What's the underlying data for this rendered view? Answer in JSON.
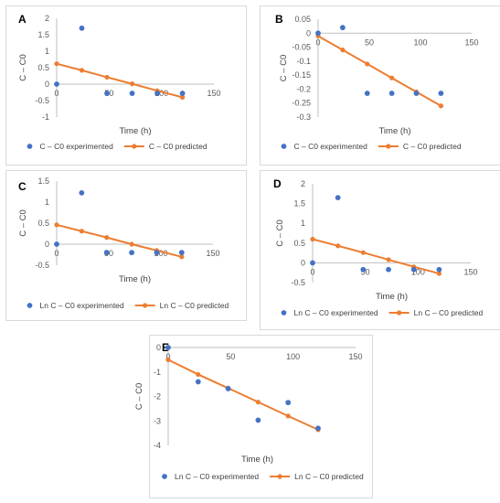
{
  "colors": {
    "experimented": "#4472c4",
    "predicted": "#ed7d31"
  },
  "chart_data": [
    {
      "type": "scatter",
      "panel": "A",
      "xlabel": "Time (h)",
      "ylabel": "C – C0",
      "xlim": [
        0,
        150
      ],
      "ylim": [
        -1,
        2
      ],
      "xticks": [
        0,
        50,
        100,
        150
      ],
      "yticks": [
        -1,
        -0.5,
        0,
        0.5,
        1,
        1.5,
        2
      ],
      "ytick_labels": [
        "-1",
        "-0.5",
        "0",
        "0.5",
        "1",
        "1.5",
        "2"
      ],
      "legend_position": "bottom",
      "series": [
        {
          "name": "C – C0 experimented",
          "kind": "scatter",
          "x": [
            0,
            24,
            48,
            72,
            96,
            120
          ],
          "y": [
            0,
            1.7,
            -0.28,
            -0.28,
            -0.28,
            -0.28
          ]
        },
        {
          "name": "C – C0 predicted",
          "kind": "line",
          "x": [
            0,
            24,
            48,
            72,
            96,
            120
          ],
          "y": [
            0.62,
            0.42,
            0.21,
            0.01,
            -0.2,
            -0.4
          ]
        }
      ]
    },
    {
      "type": "scatter",
      "panel": "B",
      "xlabel": "Time (h)",
      "ylabel": "C – C0",
      "xlim": [
        0,
        150
      ],
      "ylim": [
        -0.3,
        0.05
      ],
      "xticks": [
        0,
        50,
        100,
        150
      ],
      "yticks": [
        -0.3,
        -0.25,
        -0.2,
        -0.15,
        -0.1,
        -0.05,
        0,
        0.05
      ],
      "ytick_labels": [
        "-0.3",
        "-0.25",
        "-0.2",
        "-0.15",
        "-0.1",
        "-0.05",
        "0",
        "0.05"
      ],
      "legend_position": "bottom",
      "series": [
        {
          "name": "C – C0 experimented",
          "kind": "scatter",
          "x": [
            0,
            24,
            48,
            72,
            96,
            120
          ],
          "y": [
            0,
            0.02,
            -0.215,
            -0.215,
            -0.215,
            -0.215
          ]
        },
        {
          "name": "C – C0 predicted",
          "kind": "line",
          "x": [
            0,
            24,
            48,
            72,
            96,
            120
          ],
          "y": [
            -0.01,
            -0.06,
            -0.11,
            -0.16,
            -0.21,
            -0.26
          ]
        }
      ]
    },
    {
      "type": "scatter",
      "panel": "C",
      "xlabel": "Time (h)",
      "ylabel": "C – C0",
      "xlim": [
        0,
        150
      ],
      "ylim": [
        -0.5,
        1.5
      ],
      "xticks": [
        0,
        50,
        100,
        150
      ],
      "yticks": [
        -0.5,
        0,
        0.5,
        1,
        1.5
      ],
      "ytick_labels": [
        "-0.5",
        "0",
        "0.5",
        "1",
        "1.5"
      ],
      "legend_position": "bottom",
      "series": [
        {
          "name": "Ln C – C0 experimented",
          "kind": "scatter",
          "x": [
            0,
            24,
            48,
            72,
            96,
            120
          ],
          "y": [
            0,
            1.22,
            -0.2,
            -0.2,
            -0.2,
            -0.2
          ]
        },
        {
          "name": "Ln C – C0 predicted",
          "kind": "line",
          "x": [
            0,
            24,
            48,
            72,
            96,
            120
          ],
          "y": [
            0.46,
            0.31,
            0.16,
            0.0,
            -0.15,
            -0.3
          ]
        }
      ]
    },
    {
      "type": "scatter",
      "panel": "D",
      "xlabel": "Time (h)",
      "ylabel": "C – C0",
      "xlim": [
        0,
        150
      ],
      "ylim": [
        -0.5,
        2
      ],
      "xticks": [
        0,
        50,
        100,
        150
      ],
      "yticks": [
        -0.5,
        0,
        0.5,
        1,
        1.5,
        2
      ],
      "ytick_labels": [
        "-0.5",
        "0",
        "0.5",
        "1",
        "1.5",
        "2"
      ],
      "legend_position": "bottom",
      "series": [
        {
          "name": "Ln C – C0 experimented",
          "kind": "scatter",
          "x": [
            0,
            24,
            48,
            72,
            96,
            120
          ],
          "y": [
            0,
            1.65,
            -0.17,
            -0.17,
            -0.17,
            -0.17
          ]
        },
        {
          "name": "Ln C – C0 predicted",
          "kind": "line",
          "x": [
            0,
            24,
            48,
            72,
            96,
            120
          ],
          "y": [
            0.6,
            0.43,
            0.26,
            0.08,
            -0.1,
            -0.27
          ]
        }
      ]
    },
    {
      "type": "scatter",
      "panel": "E",
      "xlabel": "Time (h)",
      "ylabel": "C – C0",
      "xlim": [
        0,
        150
      ],
      "ylim": [
        -4,
        0
      ],
      "xticks": [
        0,
        50,
        100,
        150
      ],
      "yticks": [
        -4,
        -3,
        -2,
        -1,
        0
      ],
      "ytick_labels": [
        "-4",
        "-3",
        "-2",
        "-1",
        "0"
      ],
      "legend_position": "bottom",
      "series": [
        {
          "name": "Ln C – C0 experimented",
          "kind": "scatter",
          "x": [
            0,
            24,
            48,
            72,
            96,
            120
          ],
          "y": [
            0,
            -1.4,
            -1.68,
            -2.97,
            -2.25,
            -3.3
          ]
        },
        {
          "name": "Ln C – C0 predicted",
          "kind": "line",
          "x": [
            0,
            24,
            48,
            72,
            96,
            120
          ],
          "y": [
            -0.5,
            -1.1,
            -1.66,
            -2.23,
            -2.8,
            -3.36
          ]
        }
      ]
    }
  ]
}
